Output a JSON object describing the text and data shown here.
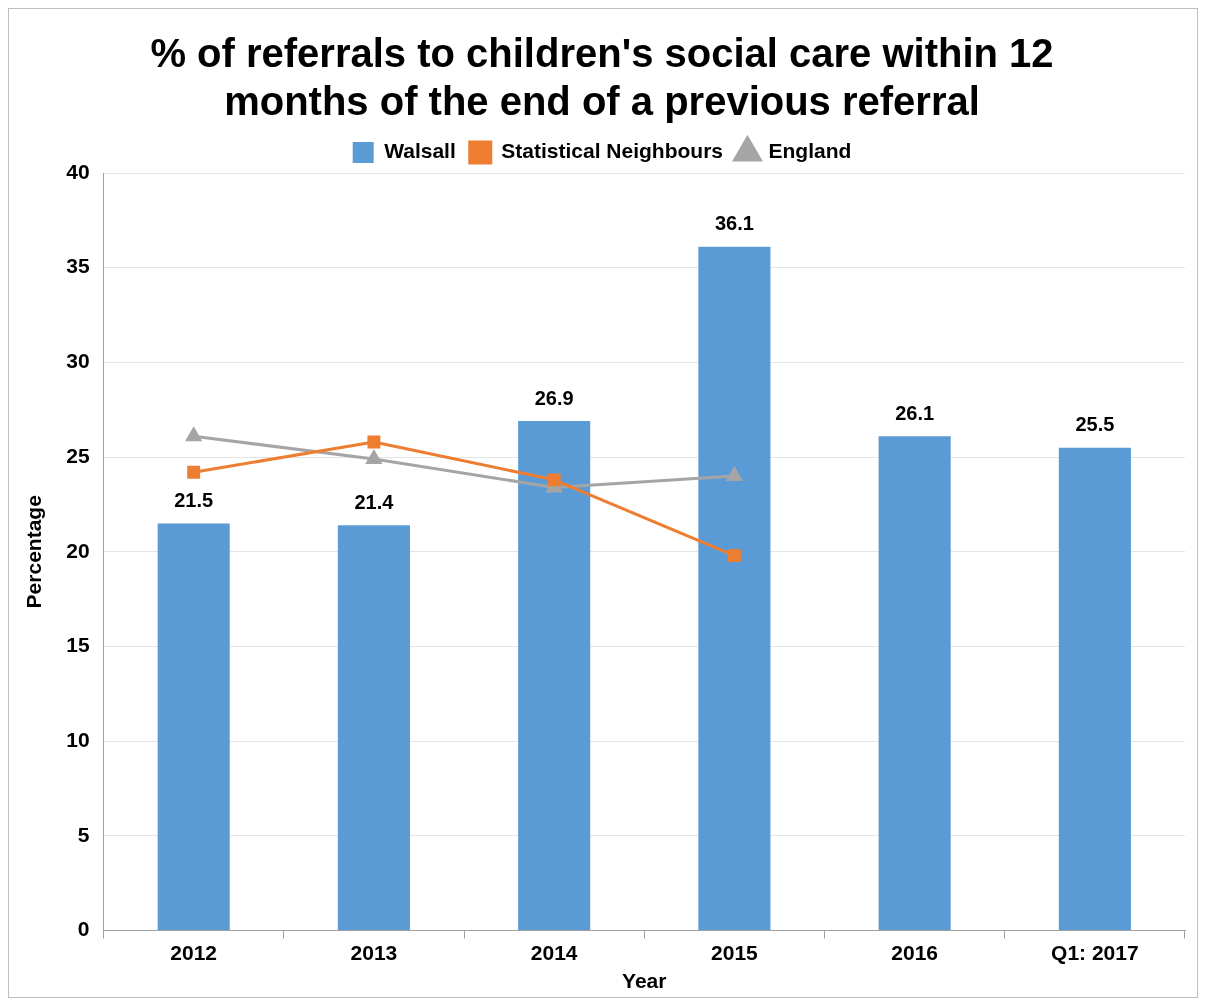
{
  "chart_data": {
    "type": "bar",
    "title": "% of referrals to children's social care within 12 months of the end of a previous referral",
    "xlabel": "Year",
    "ylabel": "Percentage",
    "categories": [
      "2012",
      "2013",
      "2014",
      "2015",
      "2016",
      "Q1: 2017"
    ],
    "series": [
      {
        "name": "Walsall",
        "color": "#5b9bd5",
        "values": [
          21.5,
          21.4,
          26.9,
          36.1,
          26.1,
          25.5
        ],
        "value_labels": [
          "21.5",
          "21.4",
          "26.9",
          "36.1",
          "26.1",
          "25.5"
        ]
      },
      {
        "name": "Statistical Neighbours",
        "type": "line",
        "marker": "square",
        "color": "#ed7d31",
        "values": [
          24.2,
          25.8,
          23.8,
          19.8,
          null,
          null
        ]
      },
      {
        "name": "England",
        "type": "line",
        "marker": "triangle",
        "color": "#a5a5a5",
        "values": [
          26.1,
          24.9,
          23.4,
          24.0,
          null,
          null
        ]
      }
    ],
    "ylim": [
      0,
      40
    ],
    "yticks": [
      0,
      5,
      10,
      15,
      20,
      25,
      30,
      35,
      40
    ],
    "grid": "y",
    "legend": "top"
  }
}
